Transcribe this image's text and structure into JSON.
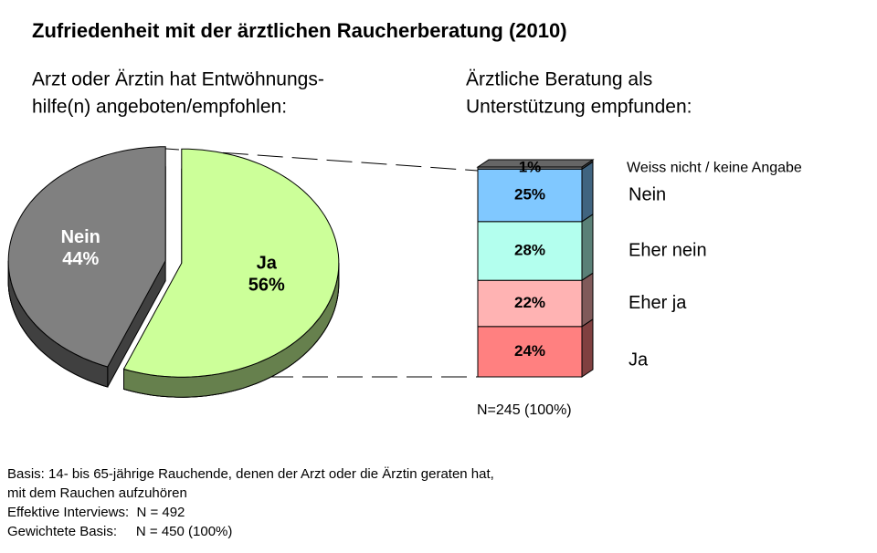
{
  "title": "Zufriedenheit mit der ärztlichen Raucherberatung (2010)",
  "chart_data": [
    {
      "type": "pie",
      "title": [
        "Arzt oder Ärztin hat Entwöhnungs-",
        "hilfe(n) angeboten/empfohlen:"
      ],
      "categories": [
        "Ja",
        "Nein"
      ],
      "values": [
        56,
        44
      ],
      "value_labels": [
        "56%",
        "44%"
      ],
      "colors": [
        "#ccff99",
        "#808080"
      ]
    },
    {
      "type": "stacked_bar",
      "title": [
        "Ärztliche Beratung als",
        "Unterstützung empfunden:"
      ],
      "categories": [
        "Ja",
        "Eher ja",
        "Eher nein",
        "Nein",
        "Weiss nicht / keine Angabe"
      ],
      "values": [
        24,
        22,
        28,
        25,
        1
      ],
      "value_labels": [
        "24%",
        "22%",
        "28%",
        "25%",
        "1%"
      ],
      "colors": [
        "#ff8080",
        "#ffb3b3",
        "#b3ffee",
        "#80c8ff",
        "#808080"
      ],
      "note": "N=245 (100%)"
    }
  ],
  "footnote": [
    "Basis: 14- bis 65-jährige Rauchende, denen der Arzt oder die Ärztin geraten hat,",
    "mit dem Rauchen aufzuhören",
    "Effektive Interviews:  N = 492",
    "Gewichtete Basis:     N = 450 (100%)"
  ]
}
